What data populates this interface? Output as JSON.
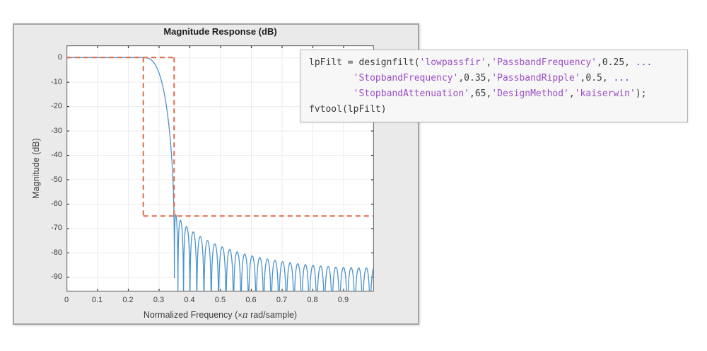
{
  "figure": {
    "title": "Magnitude Response (dB)",
    "ylabel": "Magnitude (dB)",
    "xlabel_prefix": "Normalized Frequency (",
    "xlabel_times": "×",
    "xlabel_pi": "π",
    "xlabel_suffix": " rad/sample)"
  },
  "code_box": {
    "colors": {
      "plain": "#3a3a3a",
      "string": "#9b4ec4",
      "continuation": "#4848cc"
    },
    "lines": [
      {
        "segments": [
          {
            "text": "lpFilt = designfilt(",
            "type": "plain"
          },
          {
            "text": "'lowpassfir'",
            "type": "string"
          },
          {
            "text": ",",
            "type": "plain"
          },
          {
            "text": "'PassbandFrequency'",
            "type": "string"
          },
          {
            "text": ",0.25, ",
            "type": "plain"
          },
          {
            "text": "...",
            "type": "continuation"
          }
        ]
      },
      {
        "segments": [
          {
            "text": "        ",
            "type": "plain"
          },
          {
            "text": "'StopbandFrequency'",
            "type": "string"
          },
          {
            "text": ",0.35,",
            "type": "plain"
          },
          {
            "text": "'PassbandRipple'",
            "type": "string"
          },
          {
            "text": ",0.5, ",
            "type": "plain"
          },
          {
            "text": "...",
            "type": "continuation"
          }
        ]
      },
      {
        "segments": [
          {
            "text": "        ",
            "type": "plain"
          },
          {
            "text": "'StopbandAttenuation'",
            "type": "string"
          },
          {
            "text": ",65,",
            "type": "plain"
          },
          {
            "text": "'DesignMethod'",
            "type": "string"
          },
          {
            "text": ",",
            "type": "plain"
          },
          {
            "text": "'kaiserwin'",
            "type": "string"
          },
          {
            "text": ");",
            "type": "plain"
          }
        ]
      },
      {
        "segments": [
          {
            "text": "fvtool(lpFilt)",
            "type": "plain"
          }
        ]
      }
    ]
  },
  "chart_data": {
    "type": "line",
    "title": "Magnitude Response (dB)",
    "xlabel": "Normalized Frequency (×π rad/sample)",
    "ylabel": "Magnitude (dB)",
    "xlim": [
      0,
      1
    ],
    "ylim": [
      -96,
      5
    ],
    "grid": true,
    "xtick_values": [
      0,
      0.1,
      0.2,
      0.3,
      0.4,
      0.5,
      0.6,
      0.7,
      0.8,
      0.9
    ],
    "xtick_labels": [
      "0",
      "0.1",
      "0.2",
      "0.3",
      "0.4",
      "0.5",
      "0.6",
      "0.7",
      "0.8",
      "0.9"
    ],
    "ytick_values": [
      0,
      -10,
      -20,
      -30,
      -40,
      -50,
      -60,
      -70,
      -80,
      -90
    ],
    "ytick_labels": [
      "0",
      "-10",
      "-20",
      "-30",
      "-40",
      "-50",
      "-60",
      "-70",
      "-80",
      "-90"
    ],
    "colors": {
      "grid": "#ebebeb",
      "axes_box": "#777777",
      "tick": "#333333",
      "plot_background": "#ffffff"
    },
    "series": [
      {
        "name": "filter-magnitude-response",
        "color": "#4b92cd",
        "line_width": 1.3,
        "generator": "kaiser_lowpass_fir",
        "params": {
          "response_type": "lowpassfir",
          "passband_frequency": 0.25,
          "stopband_frequency": 0.35,
          "passband_ripple_db": 0.5,
          "stopband_attenuation_db": 65,
          "design_method": "kaiserwin"
        }
      },
      {
        "name": "design-spec-mask",
        "color": "#dd6b4a",
        "line_width": 2,
        "style": "dashed",
        "dash": [
          7,
          5
        ],
        "segments": [
          [
            [
              0,
              0
            ],
            [
              0.35,
              0
            ]
          ],
          [
            [
              0.25,
              0
            ],
            [
              0.25,
              -65
            ]
          ],
          [
            [
              0.35,
              0
            ],
            [
              0.35,
              -65
            ]
          ],
          [
            [
              0.25,
              -65
            ],
            [
              1,
              -65
            ]
          ]
        ]
      }
    ]
  }
}
